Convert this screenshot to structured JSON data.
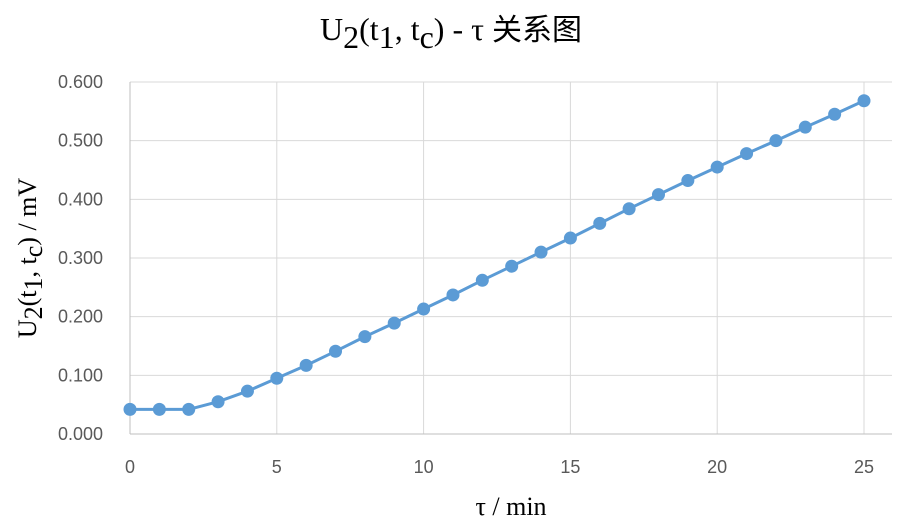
{
  "chart_data": {
    "type": "line",
    "title": {
      "main": "U",
      "sub1": "2",
      "mid1": "(t",
      "sub2": "1",
      "mid2": ", t",
      "sub3": "c",
      "end": ") - τ ",
      "cjk": "关系图"
    },
    "xlabel": "τ / min",
    "ylabel": {
      "main": "U",
      "sub1": "2",
      "mid1": "(t",
      "sub2": "1",
      "mid2": ", t",
      "sub3": "c",
      "end": ")  / mV"
    },
    "xlim": [
      0,
      25
    ],
    "ylim": [
      0,
      0.6
    ],
    "x_ticks": [
      "0",
      "5",
      "10",
      "15",
      "20",
      "25"
    ],
    "y_ticks": [
      "0.000",
      "0.100",
      "0.200",
      "0.300",
      "0.400",
      "0.500",
      "0.600"
    ],
    "grid": true,
    "series": [
      {
        "color": "#5b9bd5",
        "x": [
          0,
          1,
          2,
          3,
          4,
          5,
          6,
          7,
          8,
          9,
          10,
          11,
          12,
          13,
          14,
          15,
          16,
          17,
          18,
          19,
          20,
          21,
          22,
          23,
          24,
          25
        ],
        "y": [
          0.042,
          0.042,
          0.042,
          0.055,
          0.073,
          0.095,
          0.117,
          0.141,
          0.166,
          0.189,
          0.213,
          0.237,
          0.262,
          0.286,
          0.31,
          0.334,
          0.359,
          0.384,
          0.408,
          0.432,
          0.455,
          0.478,
          0.5,
          0.523,
          0.545,
          0.568
        ]
      }
    ]
  }
}
